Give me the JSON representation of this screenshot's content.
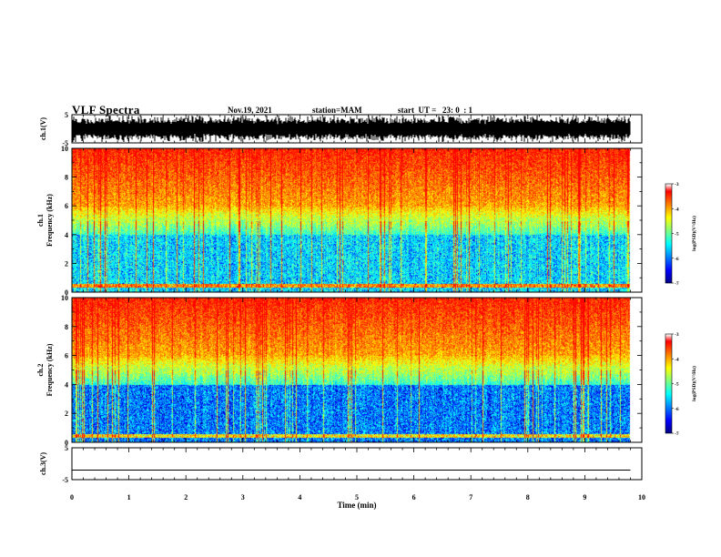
{
  "header": {
    "title": "VLF Spectra",
    "date": "Nov.19, 2021",
    "station": "station=MAM",
    "start": "start  UT =   23: 0  : 1"
  },
  "colors": {
    "scale": [
      "#000080",
      "#0000ff",
      "#0080ff",
      "#00ffff",
      "#80ff80",
      "#ffff00",
      "#ff8000",
      "#ff0000",
      "#ffffff"
    ]
  },
  "chart_data": [
    {
      "type": "line",
      "panel": "ch1-waveform",
      "ylabel": "ch.1(V)",
      "ylim": [
        -5,
        5
      ],
      "yticks": [
        "5",
        "-5"
      ],
      "xlim": [
        0,
        10
      ],
      "grid": false
    },
    {
      "type": "heatmap",
      "panel": "ch1-spectrogram",
      "ylabel_line1": "ch.1",
      "ylabel_line2": "Frequency (kHz)",
      "ylim": [
        0,
        10
      ],
      "yticks": [
        "0",
        "2",
        "4",
        "6",
        "8",
        "10"
      ],
      "xlim": [
        0,
        10
      ],
      "data_end_min": 9.8,
      "colorbar": {
        "label": "log(PSD)(V²/Hz)",
        "range": [
          -7,
          -3
        ],
        "ticks": [
          "-3",
          "-4",
          "-5",
          "-6",
          "-7"
        ]
      }
    },
    {
      "type": "heatmap",
      "panel": "ch2-spectrogram",
      "ylabel_line1": "ch.2",
      "ylabel_line2": "Frequency (kHz)",
      "ylim": [
        0,
        10
      ],
      "yticks": [
        "0",
        "2",
        "4",
        "6",
        "8",
        "10"
      ],
      "xlim": [
        0,
        10
      ],
      "data_end_min": 9.8,
      "colorbar": {
        "label": "log(PSD)(V²/Hz)",
        "range": [
          -7,
          -3
        ],
        "ticks": [
          "-3",
          "-4",
          "-5",
          "-6",
          "-7"
        ]
      }
    },
    {
      "type": "line",
      "panel": "ch3-waveform",
      "ylabel": "ch.3(V)",
      "ylim": [
        -5,
        5
      ],
      "yticks": [
        "5",
        "-5"
      ],
      "x": [
        0,
        9.8
      ],
      "y": [
        -2,
        -2
      ],
      "xlim": [
        0,
        10
      ],
      "xlabel": "Time (min)",
      "xticks": [
        "0",
        "1",
        "2",
        "3",
        "4",
        "5",
        "6",
        "7",
        "8",
        "9",
        "10"
      ],
      "grid": false
    }
  ]
}
